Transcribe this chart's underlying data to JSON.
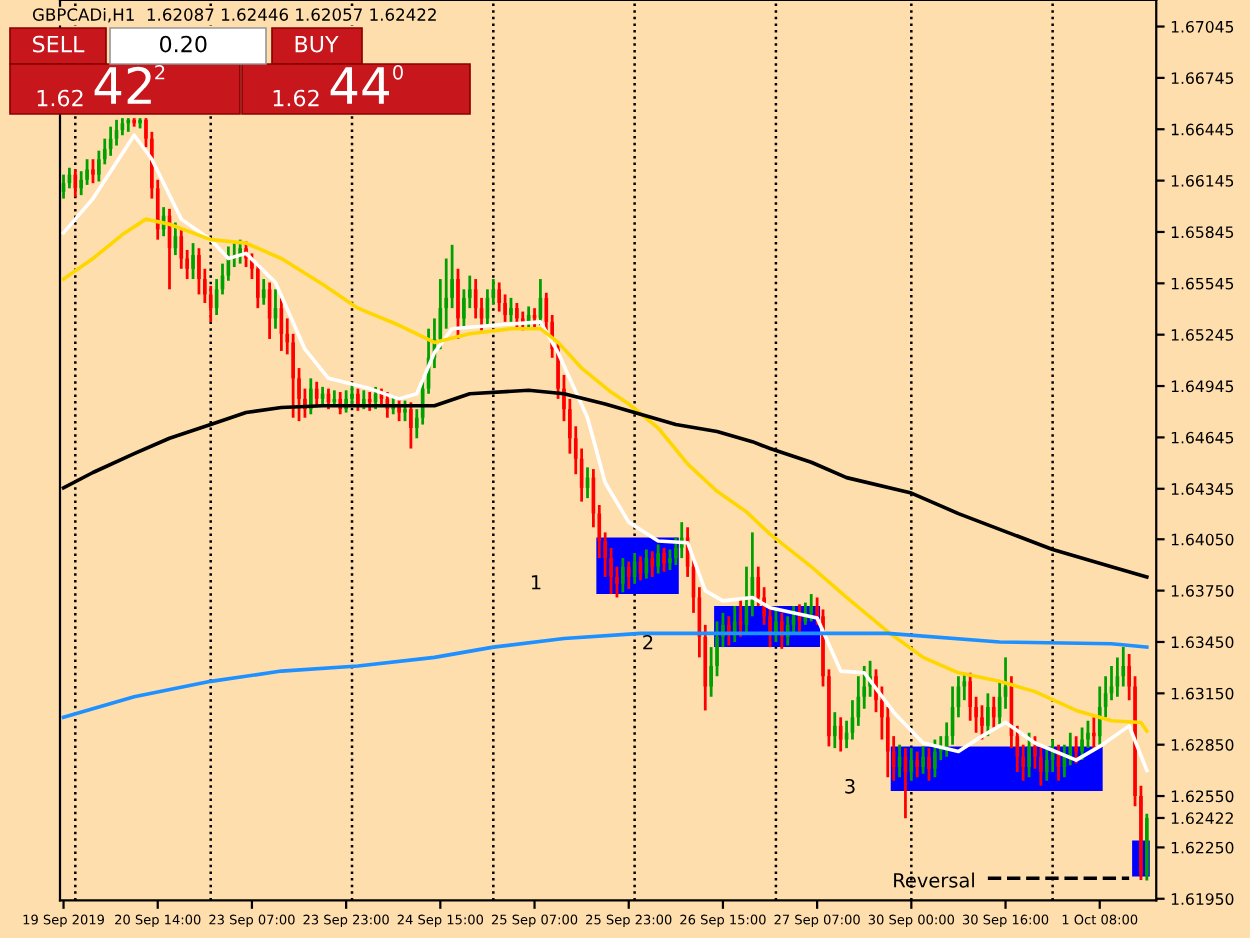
{
  "chart_data": {
    "type": "candlestick",
    "title": "GBPCADi,H1  1.62087 1.62446 1.62057 1.62422",
    "annotations": [
      "SELL",
      "0.20",
      "BUY",
      "1.62",
      "42",
      "2",
      "1.62",
      "44",
      "0",
      "1",
      "2",
      "3",
      "Reversal"
    ],
    "colors": [
      "#00a000",
      "#00a000",
      "#ff0000",
      "#00a000",
      "#00a000",
      "#ff0000",
      "#00a000",
      "#00a000",
      "#00a000",
      "#00a000",
      "#00a000",
      "#00a000",
      "#ff0000",
      "#00a000",
      "#ff0000",
      "#ff0000",
      "#ff0000",
      "#00a000",
      "#ff0000",
      "#00a000",
      "#ff0000",
      "#ff0000",
      "#00a000",
      "#ff0000",
      "#ff0000",
      "#ff0000",
      "#00a000",
      "#00a000",
      "#00a000",
      "#00a000",
      "#00a000",
      "#ff0000",
      "#ff0000",
      "#ff0000",
      "#00a000",
      "#ff0000",
      "#00a000",
      "#ff0000",
      "#ff0000",
      "#ff0000",
      "#ff0000",
      "#ff0000",
      "#00a000",
      "#ff0000",
      "#00a000",
      "#ff0000",
      "#00a000",
      "#ff0000",
      "#00a000",
      "#00a000",
      "#ff0000",
      "#00a000",
      "#ff0000",
      "#00a000",
      "#ff0000",
      "#ff0000",
      "#00a000",
      "#ff0000",
      "#00a000",
      "#ff0000",
      "#00a000",
      "#00a000",
      "#00a000",
      "#00a000",
      "#00a000",
      "#00a000",
      "#00a000",
      "#ff0000",
      "#00a000",
      "#00a000",
      "#ff0000",
      "#ff0000",
      "#00a000",
      "#00a000",
      "#ff0000",
      "#ff0000",
      "#00a000",
      "#ff0000",
      "#ff0000",
      "#00a000",
      "#ff0000",
      "#00a000",
      "#ff0000",
      "#ff0000",
      "#ff0000",
      "#ff0000",
      "#ff0000",
      "#ff0000",
      "#ff0000",
      "#00a000",
      "#ff0000",
      "#ff0000",
      "#ff0000",
      "#ff0000",
      "#ff0000",
      "#00a000",
      "#ff0000",
      "#00a000",
      "#ff0000",
      "#00a000",
      "#ff0000",
      "#00a000",
      "#ff0000",
      "#00a000",
      "#00a000",
      "#00a000",
      "#ff0000",
      "#ff0000",
      "#ff0000",
      "#ff0000",
      "#00a000",
      "#00a000",
      "#00a000",
      "#ff0000",
      "#00a000",
      "#ff0000",
      "#00a000",
      "#00a000",
      "#ff0000",
      "#ff0000",
      "#ff0000",
      "#00a000",
      "#ff0000",
      "#00a000",
      "#00a000",
      "#ff0000",
      "#00a000",
      "#00a000",
      "#ff0000",
      "#ff0000",
      "#ff0000",
      "#00a000",
      "#ff0000",
      "#00a000",
      "#00a000",
      "#00a000",
      "#00a000",
      "#00a000",
      "#ff0000",
      "#ff0000",
      "#ff0000",
      "#ff0000",
      "#00a000",
      "#ff0000",
      "#00a000",
      "#ff0000",
      "#00a000",
      "#ff0000",
      "#00a000",
      "#00a000",
      "#00a000",
      "#00a000",
      "#00a000",
      "#00a000",
      "#ff0000",
      "#ff0000",
      "#ff0000",
      "#00a000",
      "#ff0000",
      "#00a000",
      "#00a000",
      "#ff0000",
      "#ff0000",
      "#ff0000",
      "#00a000",
      "#ff0000",
      "#ff0000",
      "#00a000",
      "#00a000",
      "#ff0000",
      "#00a000",
      "#00a000",
      "#ff0000",
      "#00a000",
      "#00a000",
      "#ff0000",
      "#00a000",
      "#00a000",
      "#00a000",
      "#00a000",
      "#00a000",
      "#ff0000",
      "#ff0000",
      "#ff0000",
      "#00a000"
    ],
    "categories": [
      "19 Sep 2019",
      null,
      null,
      null,
      null,
      null,
      null,
      null,
      null,
      null,
      null,
      null,
      null,
      null,
      null,
      null,
      "20 Sep 14:00",
      null,
      null,
      null,
      null,
      null,
      null,
      null,
      null,
      null,
      null,
      null,
      null,
      null,
      null,
      null,
      "23 Sep 07:00",
      null,
      null,
      null,
      null,
      null,
      null,
      null,
      null,
      null,
      null,
      null,
      null,
      null,
      null,
      null,
      "23 Sep 23:00",
      null,
      null,
      null,
      null,
      null,
      null,
      null,
      null,
      null,
      null,
      null,
      null,
      null,
      null,
      null,
      "24 Sep 15:00",
      null,
      null,
      null,
      null,
      null,
      null,
      null,
      null,
      null,
      null,
      null,
      null,
      null,
      null,
      null,
      "25 Sep 07:00",
      null,
      null,
      null,
      null,
      null,
      null,
      null,
      null,
      null,
      null,
      null,
      null,
      null,
      null,
      null,
      "25 Sep 23:00",
      null,
      null,
      null,
      null,
      null,
      null,
      null,
      null,
      null,
      null,
      null,
      null,
      null,
      null,
      null,
      "26 Sep 15:00",
      null,
      null,
      null,
      null,
      null,
      null,
      null,
      null,
      null,
      null,
      null,
      null,
      null,
      null,
      null,
      "27 Sep 07:00",
      null,
      null,
      null,
      null,
      null,
      null,
      null,
      null,
      null,
      null,
      null,
      null,
      null,
      null,
      null,
      "30 Sep 00:00",
      null,
      null,
      null,
      null,
      null,
      null,
      null,
      null,
      null,
      null,
      null,
      null,
      null,
      null,
      null,
      "30 Sep 16:00",
      null,
      null,
      null,
      null,
      null,
      null,
      null,
      null,
      null,
      null,
      null,
      null,
      null,
      null,
      null,
      "1 Oct 08:00",
      null,
      null,
      null,
      null,
      null,
      null,
      null,
      null
    ],
    "ohlc": [
      [
        1.6608,
        1.6618,
        1.6604,
        1.6613
      ],
      [
        1.6613,
        1.6622,
        1.661,
        1.6618
      ],
      [
        1.6618,
        1.6621,
        1.6605,
        1.661
      ],
      [
        1.661,
        1.662,
        1.6606,
        1.6615
      ],
      [
        1.6615,
        1.6627,
        1.6612,
        1.6621
      ],
      [
        1.6621,
        1.6627,
        1.6613,
        1.6618
      ],
      [
        1.6618,
        1.6632,
        1.6614,
        1.6627
      ],
      [
        1.6627,
        1.6639,
        1.6624,
        1.6633
      ],
      [
        1.6633,
        1.6646,
        1.6629,
        1.6639
      ],
      [
        1.6639,
        1.665,
        1.6635,
        1.6644
      ],
      [
        1.6644,
        1.6651,
        1.6641,
        1.6648
      ],
      [
        1.6648,
        1.6651,
        1.6643,
        1.665
      ],
      [
        1.665,
        1.6651,
        1.6646,
        1.6648
      ],
      [
        1.6648,
        1.6651,
        1.6645,
        1.665
      ],
      [
        1.665,
        1.6651,
        1.6634,
        1.6639
      ],
      [
        1.6639,
        1.6643,
        1.6604,
        1.661
      ],
      [
        1.661,
        1.6615,
        1.658,
        1.6586
      ],
      [
        1.6586,
        1.6599,
        1.6582,
        1.6594
      ],
      [
        1.6594,
        1.6598,
        1.6551,
        1.6575
      ],
      [
        1.6575,
        1.659,
        1.6571,
        1.6582
      ],
      [
        1.6582,
        1.6586,
        1.6563,
        1.6569
      ],
      [
        1.6569,
        1.6574,
        1.6557,
        1.6563
      ],
      [
        1.6563,
        1.6578,
        1.6557,
        1.6571
      ],
      [
        1.6571,
        1.6575,
        1.6548,
        1.6557
      ],
      [
        1.6557,
        1.6563,
        1.6543,
        1.6548
      ],
      [
        1.6548,
        1.6553,
        1.6532,
        1.654
      ],
      [
        1.654,
        1.6557,
        1.6536,
        1.6551
      ],
      [
        1.6551,
        1.6566,
        1.6548,
        1.6559
      ],
      [
        1.6559,
        1.6576,
        1.6556,
        1.6569
      ],
      [
        1.6569,
        1.6578,
        1.6564,
        1.6571
      ],
      [
        1.6571,
        1.658,
        1.6566,
        1.6575
      ],
      [
        1.6575,
        1.6579,
        1.6564,
        1.6569
      ],
      [
        1.6569,
        1.6572,
        1.6557,
        1.6563
      ],
      [
        1.6563,
        1.6566,
        1.654,
        1.6546
      ],
      [
        1.6546,
        1.6557,
        1.6542,
        1.6551
      ],
      [
        1.6551,
        1.6555,
        1.6522,
        1.6534
      ],
      [
        1.6534,
        1.6551,
        1.6528,
        1.654
      ],
      [
        1.654,
        1.6546,
        1.6515,
        1.6525
      ],
      [
        1.6525,
        1.6534,
        1.6513,
        1.652
      ],
      [
        1.652,
        1.6525,
        1.6476,
        1.6499
      ],
      [
        1.6499,
        1.6505,
        1.6474,
        1.6487
      ],
      [
        1.6487,
        1.6493,
        1.6476,
        1.6481
      ],
      [
        1.6481,
        1.6499,
        1.6478,
        1.6493
      ],
      [
        1.6493,
        1.6497,
        1.6483,
        1.6487
      ],
      [
        1.6487,
        1.6494,
        1.6484,
        1.649
      ],
      [
        1.649,
        1.6493,
        1.6481,
        1.6485
      ],
      [
        1.6485,
        1.6492,
        1.6483,
        1.6487
      ],
      [
        1.6487,
        1.6491,
        1.6478,
        1.6481
      ],
      [
        1.6481,
        1.6492,
        1.6479,
        1.6487
      ],
      [
        1.6487,
        1.6496,
        1.6484,
        1.649
      ],
      [
        1.649,
        1.6493,
        1.648,
        1.6484
      ],
      [
        1.6484,
        1.6492,
        1.6481,
        1.6487
      ],
      [
        1.6487,
        1.6491,
        1.648,
        1.6485
      ],
      [
        1.6485,
        1.6494,
        1.6481,
        1.649
      ],
      [
        1.649,
        1.6493,
        1.6483,
        1.6487
      ],
      [
        1.6487,
        1.6491,
        1.6476,
        1.6481
      ],
      [
        1.6481,
        1.6489,
        1.6478,
        1.6484
      ],
      [
        1.6484,
        1.6487,
        1.6474,
        1.6479
      ],
      [
        1.6479,
        1.6486,
        1.6474,
        1.6481
      ],
      [
        1.6481,
        1.6485,
        1.6458,
        1.647
      ],
      [
        1.647,
        1.6481,
        1.6464,
        1.6476
      ],
      [
        1.6476,
        1.6499,
        1.6472,
        1.6493
      ],
      [
        1.6493,
        1.6528,
        1.649,
        1.6511
      ],
      [
        1.6511,
        1.6534,
        1.6505,
        1.6522
      ],
      [
        1.6522,
        1.6557,
        1.6516,
        1.654
      ],
      [
        1.654,
        1.6569,
        1.6528,
        1.6546
      ],
      [
        1.6546,
        1.6577,
        1.654,
        1.6557
      ],
      [
        1.6557,
        1.6563,
        1.6522,
        1.6534
      ],
      [
        1.6534,
        1.6551,
        1.6528,
        1.6546
      ],
      [
        1.6546,
        1.6559,
        1.654,
        1.6551
      ],
      [
        1.6551,
        1.6557,
        1.6534,
        1.654
      ],
      [
        1.654,
        1.6546,
        1.6527,
        1.6534
      ],
      [
        1.6534,
        1.6551,
        1.653,
        1.6546
      ],
      [
        1.6546,
        1.6557,
        1.6542,
        1.6551
      ],
      [
        1.6551,
        1.6555,
        1.6538,
        1.6543
      ],
      [
        1.6543,
        1.6548,
        1.6532,
        1.6536
      ],
      [
        1.6536,
        1.6546,
        1.6532,
        1.654
      ],
      [
        1.654,
        1.6543,
        1.6529,
        1.6534
      ],
      [
        1.6534,
        1.6538,
        1.6527,
        1.6532
      ],
      [
        1.6532,
        1.6541,
        1.6528,
        1.6536
      ],
      [
        1.6536,
        1.654,
        1.6529,
        1.6534
      ],
      [
        1.6534,
        1.6557,
        1.653,
        1.6546
      ],
      [
        1.6546,
        1.6549,
        1.6527,
        1.6532
      ],
      [
        1.6532,
        1.6536,
        1.6511,
        1.6516
      ],
      [
        1.6516,
        1.652,
        1.6487,
        1.6493
      ],
      [
        1.6493,
        1.6501,
        1.6474,
        1.6481
      ],
      [
        1.6481,
        1.6487,
        1.6455,
        1.6464
      ],
      [
        1.6464,
        1.6471,
        1.6443,
        1.6452
      ],
      [
        1.6452,
        1.6458,
        1.6427,
        1.6435
      ],
      [
        1.6435,
        1.6447,
        1.6429,
        1.6441
      ],
      [
        1.6441,
        1.6446,
        1.6412,
        1.642
      ],
      [
        1.642,
        1.6425,
        1.6394,
        1.6404
      ],
      [
        1.6404,
        1.6409,
        1.6383,
        1.6394
      ],
      [
        1.6394,
        1.64,
        1.6373,
        1.6383
      ],
      [
        1.6383,
        1.6389,
        1.6371,
        1.6379
      ],
      [
        1.6379,
        1.6394,
        1.6374,
        1.6389
      ],
      [
        1.6389,
        1.6392,
        1.6376,
        1.6383
      ],
      [
        1.6383,
        1.6397,
        1.6379,
        1.6392
      ],
      [
        1.6392,
        1.6395,
        1.6381,
        1.6385
      ],
      [
        1.6385,
        1.6399,
        1.6382,
        1.6394
      ],
      [
        1.6394,
        1.6398,
        1.6383,
        1.6389
      ],
      [
        1.6389,
        1.6402,
        1.6385,
        1.6397
      ],
      [
        1.6397,
        1.64,
        1.6386,
        1.6391
      ],
      [
        1.6391,
        1.6399,
        1.6387,
        1.6394
      ],
      [
        1.6394,
        1.6406,
        1.639,
        1.64
      ],
      [
        1.64,
        1.6415,
        1.6394,
        1.6406
      ],
      [
        1.6406,
        1.6412,
        1.6383,
        1.6389
      ],
      [
        1.6389,
        1.6394,
        1.6362,
        1.6371
      ],
      [
        1.6371,
        1.6377,
        1.6336,
        1.6348
      ],
      [
        1.6348,
        1.6355,
        1.6305,
        1.6319
      ],
      [
        1.6319,
        1.6342,
        1.6313,
        1.6331
      ],
      [
        1.6331,
        1.6357,
        1.6325,
        1.6348
      ],
      [
        1.6348,
        1.6362,
        1.6342,
        1.6355
      ],
      [
        1.6355,
        1.636,
        1.6343,
        1.635
      ],
      [
        1.635,
        1.6366,
        1.6345,
        1.6357
      ],
      [
        1.6357,
        1.6371,
        1.6348,
        1.6355
      ],
      [
        1.6355,
        1.6389,
        1.635,
        1.6366
      ],
      [
        1.6366,
        1.6409,
        1.636,
        1.6383
      ],
      [
        1.6383,
        1.6389,
        1.6366,
        1.6371
      ],
      [
        1.6371,
        1.6377,
        1.6355,
        1.636
      ],
      [
        1.636,
        1.6366,
        1.6342,
        1.635
      ],
      [
        1.635,
        1.6364,
        1.6345,
        1.6357
      ],
      [
        1.6357,
        1.6362,
        1.6341,
        1.6348
      ],
      [
        1.6348,
        1.636,
        1.6343,
        1.6355
      ],
      [
        1.6355,
        1.6366,
        1.635,
        1.636
      ],
      [
        1.636,
        1.6367,
        1.6351,
        1.6357
      ],
      [
        1.6357,
        1.6368,
        1.6355,
        1.6362
      ],
      [
        1.6362,
        1.6373,
        1.6357,
        1.6366
      ],
      [
        1.6366,
        1.6371,
        1.6355,
        1.636
      ],
      [
        1.636,
        1.6364,
        1.6319,
        1.6325
      ],
      [
        1.6325,
        1.6329,
        1.6284,
        1.629
      ],
      [
        1.629,
        1.6304,
        1.6283,
        1.6296
      ],
      [
        1.6296,
        1.6301,
        1.6281,
        1.6288
      ],
      [
        1.6288,
        1.6299,
        1.6283,
        1.6292
      ],
      [
        1.6292,
        1.6311,
        1.6288,
        1.6301
      ],
      [
        1.6301,
        1.6325,
        1.6296,
        1.6313
      ],
      [
        1.6313,
        1.6331,
        1.6306,
        1.6319
      ],
      [
        1.6319,
        1.6334,
        1.6313,
        1.6325
      ],
      [
        1.6325,
        1.6329,
        1.6304,
        1.6311
      ],
      [
        1.6311,
        1.6319,
        1.6288,
        1.6301
      ],
      [
        1.6301,
        1.6307,
        1.6266,
        1.6281
      ],
      [
        1.6281,
        1.629,
        1.6264,
        1.6272
      ],
      [
        1.6272,
        1.6285,
        1.6266,
        1.6278
      ],
      [
        1.6278,
        1.6283,
        1.6242,
        1.6269
      ],
      [
        1.6269,
        1.6283,
        1.6264,
        1.6276
      ],
      [
        1.6276,
        1.6281,
        1.6266,
        1.6272
      ],
      [
        1.6272,
        1.6284,
        1.6268,
        1.6278
      ],
      [
        1.6278,
        1.6283,
        1.6264,
        1.6271
      ],
      [
        1.6271,
        1.6288,
        1.6266,
        1.6281
      ],
      [
        1.6281,
        1.629,
        1.6276,
        1.6284
      ],
      [
        1.6284,
        1.6298,
        1.6278,
        1.629
      ],
      [
        1.629,
        1.6319,
        1.6285,
        1.6307
      ],
      [
        1.6307,
        1.6325,
        1.6301,
        1.6319
      ],
      [
        1.6319,
        1.6327,
        1.6311,
        1.6322
      ],
      [
        1.6322,
        1.6327,
        1.6299,
        1.6307
      ],
      [
        1.6307,
        1.6313,
        1.6292,
        1.6301
      ],
      [
        1.6301,
        1.6308,
        1.6288,
        1.6296
      ],
      [
        1.6296,
        1.6315,
        1.629,
        1.6307
      ],
      [
        1.6307,
        1.6313,
        1.6295,
        1.6301
      ],
      [
        1.6301,
        1.6322,
        1.6297,
        1.6313
      ],
      [
        1.6313,
        1.6336,
        1.6306,
        1.6319
      ],
      [
        1.6319,
        1.6325,
        1.6283,
        1.629
      ],
      [
        1.629,
        1.6296,
        1.6269,
        1.6278
      ],
      [
        1.6278,
        1.6285,
        1.6264,
        1.6272
      ],
      [
        1.6272,
        1.6292,
        1.6266,
        1.6284
      ],
      [
        1.6284,
        1.629,
        1.6271,
        1.6278
      ],
      [
        1.6278,
        1.6284,
        1.6261,
        1.6269
      ],
      [
        1.6269,
        1.6283,
        1.6264,
        1.6276
      ],
      [
        1.6276,
        1.6288,
        1.6269,
        1.6281
      ],
      [
        1.6281,
        1.6285,
        1.6264,
        1.6272
      ],
      [
        1.6272,
        1.6285,
        1.6266,
        1.6278
      ],
      [
        1.6278,
        1.6292,
        1.6273,
        1.6284
      ],
      [
        1.6284,
        1.629,
        1.6274,
        1.6281
      ],
      [
        1.6281,
        1.6295,
        1.6276,
        1.6288
      ],
      [
        1.6288,
        1.6299,
        1.6283,
        1.6292
      ],
      [
        1.6292,
        1.6301,
        1.6283,
        1.629
      ],
      [
        1.629,
        1.6319,
        1.6285,
        1.6307
      ],
      [
        1.6307,
        1.6325,
        1.6301,
        1.6315
      ],
      [
        1.6315,
        1.6331,
        1.6311,
        1.6319
      ],
      [
        1.6319,
        1.6336,
        1.6313,
        1.6325
      ],
      [
        1.6325,
        1.6342,
        1.6319,
        1.6331
      ],
      [
        1.6331,
        1.6338,
        1.6311,
        1.6319
      ],
      [
        1.6319,
        1.6325,
        1.6249,
        1.6255
      ],
      [
        1.6255,
        1.6261,
        1.6206,
        1.6209
      ],
      [
        1.62087,
        1.62446,
        1.62057,
        1.62422
      ]
    ],
    "series": [
      {
        "type": "line",
        "color": "#ffffff",
        "values": [
          1.6584,
          null,
          null,
          null,
          null,
          1.6604,
          null,
          null,
          null,
          null,
          null,
          null,
          1.6641,
          null,
          null,
          1.6627,
          null,
          null,
          null,
          null,
          1.6592,
          null,
          null,
          null,
          null,
          1.658,
          null,
          null,
          1.6569,
          null,
          null,
          1.6572,
          null,
          null,
          null,
          null,
          1.6555,
          null,
          null,
          null,
          null,
          1.6516,
          null,
          null,
          null,
          1.6499,
          null,
          null,
          null,
          null,
          null,
          null,
          1.6493,
          null,
          null,
          null,
          null,
          1.6487,
          null,
          null,
          1.649,
          null,
          null,
          1.6514,
          null,
          null,
          1.6528,
          null,
          null,
          null,
          null,
          null,
          null,
          1.653,
          null,
          null,
          null,
          null,
          null,
          null,
          null,
          1.6532,
          null,
          null,
          1.6514,
          null,
          null,
          null,
          null,
          1.6476,
          null,
          null,
          1.6438,
          null,
          null,
          null,
          1.6415,
          null,
          null,
          null,
          null,
          1.6404,
          null,
          null,
          null,
          null,
          1.6403,
          null,
          null,
          1.6375,
          null,
          null,
          1.6369,
          null,
          null,
          null,
          null,
          1.6371,
          null,
          null,
          1.6365,
          null,
          null,
          null,
          null,
          null,
          null,
          null,
          1.6359,
          null,
          null,
          null,
          1.6328,
          null,
          null,
          null,
          1.6327,
          null,
          null,
          null,
          null,
          1.6304,
          null,
          null,
          null,
          null,
          1.6286,
          null,
          null,
          null,
          null,
          null,
          1.6281,
          null,
          null,
          null,
          1.629,
          null,
          null,
          null,
          1.6298,
          null,
          null,
          null,
          null,
          1.6286,
          null,
          null,
          null,
          null,
          null,
          null,
          1.6276,
          null,
          null,
          null,
          1.6284,
          null,
          null,
          null,
          null,
          1.6296,
          null,
          null,
          1.627
        ]
      },
      {
        "type": "line",
        "color": "#ffd700",
        "values": [
          1.6557,
          null,
          null,
          null,
          null,
          1.6569,
          null,
          null,
          null,
          null,
          1.6583,
          null,
          null,
          null,
          1.6592,
          null,
          null,
          null,
          1.6589,
          null,
          null,
          null,
          null,
          null,
          null,
          1.658,
          null,
          null,
          null,
          null,
          null,
          1.6578,
          null,
          null,
          null,
          null,
          null,
          1.6569,
          null,
          null,
          null,
          null,
          null,
          null,
          1.6554,
          null,
          null,
          null,
          null,
          null,
          1.654,
          null,
          null,
          null,
          null,
          null,
          null,
          1.653,
          null,
          null,
          null,
          null,
          null,
          1.652,
          null,
          null,
          null,
          null,
          null,
          1.6525,
          null,
          null,
          null,
          null,
          null,
          null,
          1.6528,
          null,
          null,
          null,
          null,
          1.6528,
          null,
          null,
          1.652,
          null,
          null,
          null,
          1.6505,
          null,
          null,
          null,
          null,
          1.6491,
          null,
          null,
          1.6484,
          null,
          null,
          null,
          null,
          1.647,
          null,
          null,
          null,
          null,
          1.6449,
          null,
          null,
          null,
          null,
          1.6433,
          null,
          null,
          null,
          null,
          1.6421,
          null,
          null,
          null,
          1.6408,
          null,
          null,
          null,
          null,
          null,
          null,
          1.6389,
          null,
          null,
          null,
          null,
          null,
          1.6371,
          null,
          null,
          null,
          null,
          null,
          null,
          1.6351,
          null,
          null,
          null,
          null,
          null,
          1.6336,
          null,
          null,
          null,
          null,
          null,
          1.6327,
          null,
          null,
          null,
          null,
          null,
          null,
          1.6322,
          null,
          null,
          null,
          null,
          null,
          1.6316,
          null,
          null,
          null,
          null,
          null,
          null,
          1.6305,
          null,
          null,
          null,
          null,
          null,
          1.6299,
          null,
          null,
          null,
          null,
          1.6298,
          1.6293
        ]
      },
      {
        "type": "line",
        "color": "#000000",
        "values": [
          1.6435,
          null,
          null,
          null,
          null,
          1.6444,
          null,
          null,
          null,
          null,
          null,
          null,
          1.6455,
          null,
          null,
          null,
          null,
          null,
          1.6464,
          null,
          null,
          null,
          null,
          null,
          null,
          1.6472,
          null,
          null,
          null,
          null,
          null,
          1.6479,
          null,
          null,
          null,
          null,
          null,
          1.6482,
          null,
          null,
          null,
          null,
          null,
          null,
          1.6483,
          null,
          null,
          null,
          null,
          null,
          1.6483,
          null,
          null,
          null,
          null,
          null,
          null,
          null,
          null,
          null,
          null,
          null,
          null,
          1.6483,
          null,
          null,
          null,
          null,
          null,
          1.649,
          null,
          null,
          null,
          null,
          null,
          null,
          null,
          null,
          null,
          1.6492,
          null,
          null,
          null,
          null,
          null,
          1.649,
          null,
          null,
          null,
          null,
          null,
          null,
          1.6484,
          null,
          null,
          null,
          null,
          null,
          1.6478,
          null,
          null,
          null,
          null,
          null,
          1.6472,
          null,
          null,
          null,
          null,
          null,
          null,
          1.6468,
          null,
          null,
          null,
          null,
          null,
          1.6462,
          null,
          null,
          1.6458,
          null,
          null,
          null,
          null,
          null,
          null,
          1.645,
          null,
          null,
          null,
          null,
          null,
          1.6441,
          null,
          null,
          null,
          null,
          null,
          null,
          null,
          null,
          null,
          null,
          1.6432,
          null,
          null,
          null,
          null,
          null,
          null,
          null,
          1.642,
          null,
          null,
          null,
          null,
          null,
          null,
          null,
          null,
          null,
          null,
          null,
          null,
          null,
          null,
          null,
          1.6399,
          null,
          null,
          null,
          null,
          null,
          null,
          null,
          null,
          null,
          1.6389,
          null,
          null,
          null,
          null,
          null,
          1.6383
        ]
      },
      {
        "type": "line",
        "color": "#1e90ff",
        "values": [
          1.6301,
          null,
          null,
          null,
          null,
          null,
          null,
          null,
          null,
          null,
          null,
          null,
          1.6313,
          null,
          null,
          null,
          null,
          null,
          null,
          null,
          null,
          null,
          null,
          null,
          null,
          1.6322,
          null,
          null,
          null,
          null,
          null,
          null,
          null,
          null,
          null,
          null,
          null,
          1.6328,
          null,
          null,
          null,
          null,
          null,
          null,
          null,
          null,
          null,
          null,
          null,
          null,
          1.6331,
          null,
          null,
          null,
          null,
          null,
          null,
          null,
          null,
          null,
          null,
          null,
          null,
          1.6336,
          null,
          null,
          null,
          null,
          null,
          null,
          null,
          null,
          null,
          1.6342,
          null,
          null,
          null,
          null,
          null,
          null,
          null,
          null,
          null,
          null,
          null,
          1.6347,
          null,
          null,
          null,
          null,
          null,
          null,
          null,
          null,
          null,
          null,
          null,
          null,
          1.635,
          null,
          null,
          null,
          null,
          null,
          null,
          null,
          null,
          null,
          null,
          null,
          null,
          1.635,
          null,
          null,
          null,
          null,
          null,
          null,
          null,
          null,
          null,
          null,
          null,
          null,
          1.635,
          null,
          null,
          null,
          null,
          null,
          null,
          null,
          null,
          null,
          null,
          null,
          null,
          null,
          null,
          null,
          1.635,
          null,
          null,
          null,
          null,
          null,
          null,
          null,
          null,
          null,
          null,
          null,
          null,
          null,
          null,
          null,
          null,
          null,
          null,
          1.6345,
          null,
          null,
          null,
          null,
          null,
          null,
          null,
          null,
          null,
          null,
          null,
          null,
          null,
          null,
          null,
          null,
          null,
          null,
          1.6344,
          null,
          null,
          null,
          null,
          null,
          1.6342
        ]
      },
      {
        "type": "line",
        "color": "#000000",
        "line_style": "dashed",
        "values": [
          null,
          null,
          null,
          null,
          null,
          null,
          null,
          null,
          null,
          null,
          null,
          null,
          null,
          null,
          null,
          null,
          null,
          null,
          null,
          null,
          null,
          null,
          null,
          null,
          null,
          null,
          null,
          null,
          null,
          null,
          null,
          null,
          null,
          null,
          null,
          null,
          null,
          null,
          null,
          null,
          null,
          null,
          null,
          null,
          null,
          null,
          null,
          null,
          null,
          null,
          null,
          null,
          null,
          null,
          null,
          null,
          null,
          null,
          null,
          null,
          null,
          null,
          null,
          null,
          null,
          null,
          null,
          null,
          null,
          null,
          null,
          null,
          null,
          null,
          null,
          null,
          null,
          null,
          null,
          null,
          null,
          null,
          null,
          null,
          null,
          null,
          null,
          null,
          null,
          null,
          null,
          null,
          null,
          null,
          null,
          null,
          null,
          null,
          null,
          null,
          null,
          null,
          null,
          null,
          null,
          null,
          null,
          null,
          null,
          null,
          null,
          null,
          null,
          null,
          null,
          null,
          null,
          null,
          null,
          null,
          null,
          null,
          null,
          null,
          null,
          null,
          null,
          null,
          null,
          null,
          null,
          null,
          null,
          null,
          null,
          null,
          null,
          null,
          null,
          null,
          null,
          null,
          null,
          null,
          null,
          null,
          null,
          null,
          null,
          null,
          null,
          null,
          null,
          null,
          null,
          null,
          null,
          1.6207,
          null,
          null,
          null,
          null,
          null,
          null,
          null,
          null,
          null,
          null,
          null,
          null,
          null,
          null,
          null,
          null,
          null,
          null,
          null,
          null,
          null,
          null,
          null,
          1.6207,
          null,
          null,
          null
        ]
      }
    ],
    "ylim": [
      1.6194,
      1.672
    ],
    "yticks": [
      1.67045,
      1.66745,
      1.66445,
      1.66145,
      1.65845,
      1.65545,
      1.65245,
      1.64945,
      1.64645,
      1.64345,
      {
        "value": 1.6405,
        "label": "1.64050"
      },
      {
        "value": 1.6375,
        "label": "1.63750"
      },
      {
        "value": 1.6345,
        "label": "1.63450"
      },
      {
        "value": 1.6315,
        "label": "1.63150"
      },
      {
        "value": 1.6285,
        "label": "1.62850"
      },
      {
        "value": 1.6255,
        "label": "1.62550"
      },
      1.62422,
      {
        "value": 1.6225,
        "label": "1.62250"
      },
      {
        "value": 1.6195,
        "label": "1.61950"
      }
    ],
    "grid": false
  }
}
